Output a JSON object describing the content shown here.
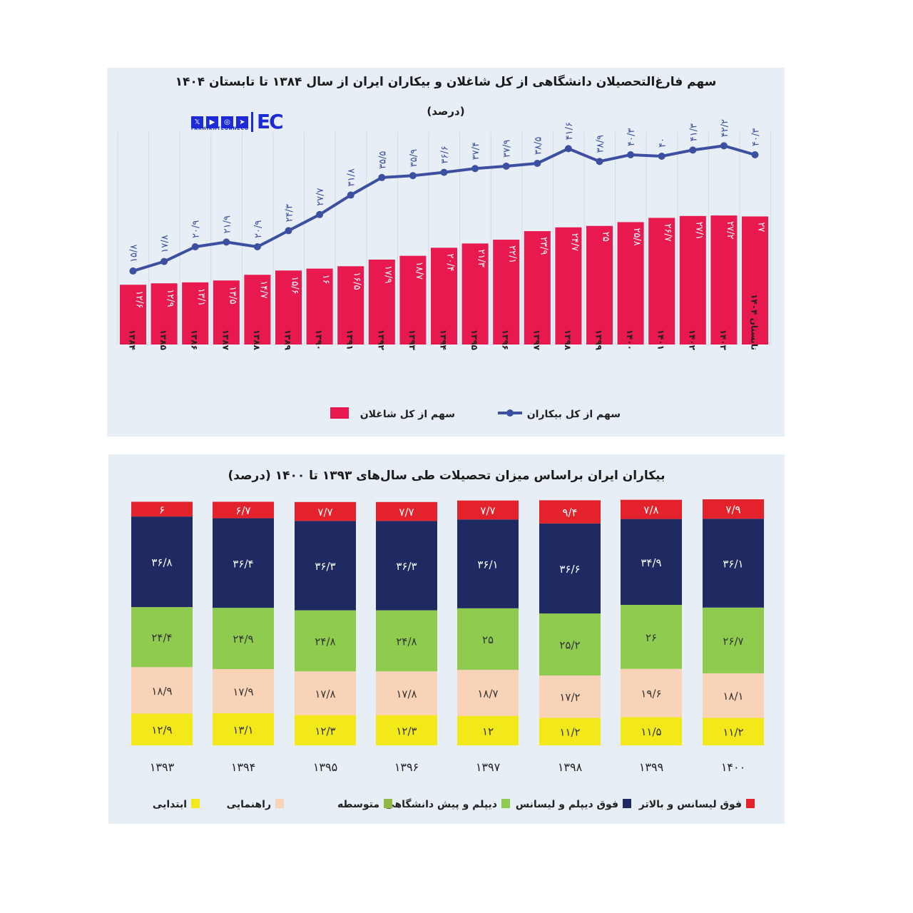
{
  "chart_data": [
    {
      "type": "bar+line",
      "title": "سهم فارغ‌التحصیلان دانشگاهی از کل شاغلان و بیکاران ایران از سال ۱۳۸۴ تا تابستان ۱۴۰۴",
      "subtitle": "(درصد)",
      "categories": [
        "۱۳۸۴",
        "۱۳۸۵",
        "۱۳۸۶",
        "۱۳۸۷",
        "۱۳۸۸",
        "۱۳۸۹",
        "۱۳۹۰",
        "۱۳۹۱",
        "۱۳۹۲",
        "۱۳۹۳",
        "۱۳۹۴",
        "۱۳۹۵",
        "۱۳۹۶",
        "۱۳۹۷",
        "۱۳۹۸",
        "۱۳۹۹",
        "۱۴۰۰",
        "۱۴۰۱",
        "۱۴۰۲",
        "۱۴۰۳",
        "تابستان ۱۴۰۴"
      ],
      "series": [
        {
          "name": "سهم از کل شاغلان",
          "type": "bar",
          "color": "#e8194f",
          "values": [
            12.6,
            12.9,
            13.1,
            13.5,
            14.7,
            15.6,
            16,
            16.5,
            17.9,
            18.7,
            20.4,
            21.3,
            22.1,
            23.9,
            24.7,
            25,
            25.8,
            26.7,
            27.1,
            27.2,
            27
          ]
        },
        {
          "name": "سهم از کل بیکاران",
          "type": "line",
          "color": "#3d4fa0",
          "values": [
            15.8,
            17.8,
            20.9,
            21.9,
            20.9,
            24.3,
            27.7,
            31.8,
            35.5,
            35.9,
            36.6,
            37.4,
            37.9,
            38.5,
            41.6,
            38.9,
            40.3,
            40,
            41.3,
            42.2,
            40.3
          ]
        }
      ],
      "ylim": [
        0,
        45
      ],
      "legend": "bottom"
    },
    {
      "type": "stacked-bar",
      "title": "بیکاران ایران براساس میزان تحصیلات طی سال‌های ۱۳۹۳ تا ۱۴۰۰ (درصد)",
      "categories": [
        "۱۳۹۳",
        "۱۳۹۴",
        "۱۳۹۵",
        "۱۳۹۶",
        "۱۳۹۷",
        "۱۳۹۸",
        "۱۳۹۹",
        "۱۴۰۰"
      ],
      "series": [
        {
          "name": "ابتدایی",
          "color": "#f3e81a",
          "values": [
            12.9,
            13.1,
            12.3,
            12.3,
            12,
            11.2,
            11.5,
            11.2
          ]
        },
        {
          "name": "راهنمایی",
          "color": "#f8d3b8",
          "values": [
            18.9,
            17.9,
            17.8,
            17.8,
            18.7,
            17.2,
            19.6,
            18.1
          ]
        },
        {
          "name": "متوسطه",
          "color": "#8fb848",
          "values": [
            null,
            null,
            null,
            null,
            null,
            null,
            null,
            null
          ]
        },
        {
          "name": "دیپلم و پیش دانشگاهی",
          "color": "#8ecb4e",
          "values": [
            24.4,
            24.9,
            24.8,
            24.8,
            25,
            25.2,
            26,
            26.7
          ]
        },
        {
          "name": "فوق دیپلم و لیسانس",
          "color": "#1f2a63",
          "values": [
            36.8,
            36.4,
            36.3,
            36.3,
            36.1,
            36.6,
            34.9,
            36.1
          ]
        },
        {
          "name": "فوق لیسانس و بالاتر",
          "color": "#e3222b",
          "values": [
            6,
            6.7,
            7.7,
            7.7,
            7.7,
            9.4,
            7.8,
            7.9
          ]
        }
      ],
      "legend": "bottom"
    }
  ],
  "logo": {
    "text": "EC",
    "sub": "FARHIKHTEGANECO",
    "watermark": "farhikhtegan"
  }
}
